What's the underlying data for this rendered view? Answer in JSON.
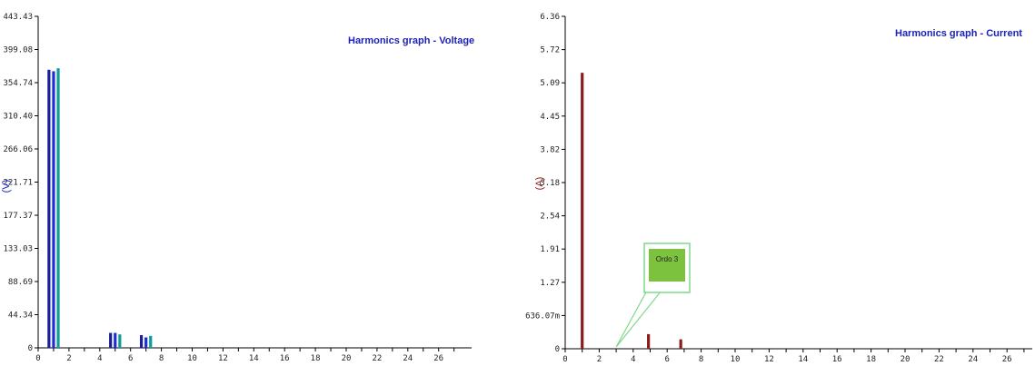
{
  "chart_data": [
    {
      "type": "bar",
      "title": "Harmonics graph - Voltage",
      "ylabel": "(V)",
      "xlim": [
        0,
        27
      ],
      "ylim": [
        0,
        443.43
      ],
      "yticks": [
        "0",
        "44.34",
        "88.69",
        "133.03",
        "177.37",
        "221.71",
        "266.06",
        "310.40",
        "354.74",
        "399.08",
        "443.43"
      ],
      "xticks": [
        "0",
        "2",
        "4",
        "6",
        "8",
        "10",
        "12",
        "14",
        "16",
        "18",
        "20",
        "22",
        "24",
        "26"
      ],
      "grid": false,
      "colors": [
        "#1b1f9c",
        "#1c2fd6",
        "#139a9a"
      ],
      "series": [
        {
          "x": [
            0.7,
            4.7,
            6.7
          ],
          "values": [
            372,
            20,
            17
          ]
        },
        {
          "x": [
            1.0,
            5.0,
            7.0
          ],
          "values": [
            370,
            20,
            14
          ]
        },
        {
          "x": [
            1.3,
            5.3,
            7.3
          ],
          "values": [
            374,
            18,
            16
          ]
        }
      ]
    },
    {
      "type": "bar",
      "title": "Harmonics graph - Current",
      "ylabel": "(A)",
      "xlim": [
        0,
        27
      ],
      "ylim": [
        0,
        6.36
      ],
      "yticks": [
        "0",
        "636.07m",
        "1.27",
        "1.91",
        "2.54",
        "3.18",
        "3.82",
        "4.45",
        "5.09",
        "5.72",
        "6.36"
      ],
      "xticks": [
        "0",
        "2",
        "4",
        "6",
        "8",
        "10",
        "12",
        "14",
        "16",
        "18",
        "20",
        "22",
        "24",
        "26"
      ],
      "grid": false,
      "colors": [
        "#8b1c1c"
      ],
      "series": [
        {
          "x": [
            1.0,
            4.9,
            6.8
          ],
          "values": [
            5.28,
            0.28,
            0.18
          ]
        }
      ],
      "annotation": {
        "text": "Ordo 3",
        "x": 3,
        "y": 0
      }
    }
  ]
}
